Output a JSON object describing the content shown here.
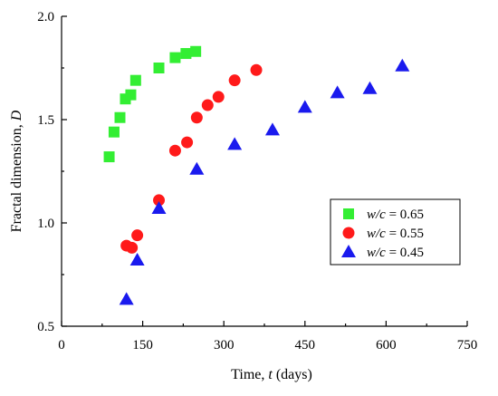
{
  "chart_data": {
    "type": "scatter",
    "xlabel": "Time, t (days)",
    "xlabel_parts": [
      "Time, ",
      "t",
      " (days)"
    ],
    "ylabel": "Fractal dimension, D",
    "ylabel_parts": [
      "Fractal dimension, ",
      "D"
    ],
    "xlim": [
      0,
      750
    ],
    "ylim": [
      0.5,
      2.0
    ],
    "x_ticks": [
      0,
      150,
      300,
      450,
      600,
      750
    ],
    "y_ticks": [
      "0.5",
      "1.0",
      "1.5",
      "2.0"
    ],
    "grid": false,
    "legend_position": "center-right",
    "series": [
      {
        "name": "w/c = 0.65",
        "legend_parts": [
          "w/c",
          " = 0.65"
        ],
        "marker": "square",
        "color": "#33ee33",
        "points": [
          [
            88,
            1.32
          ],
          [
            97,
            1.44
          ],
          [
            108,
            1.51
          ],
          [
            118,
            1.6
          ],
          [
            128,
            1.62
          ],
          [
            137,
            1.69
          ],
          [
            180,
            1.75
          ],
          [
            210,
            1.8
          ],
          [
            230,
            1.82
          ],
          [
            248,
            1.83
          ]
        ]
      },
      {
        "name": "w/c = 0.55",
        "legend_parts": [
          "w/c",
          " = 0.55"
        ],
        "marker": "circle",
        "color": "#ff1a1a",
        "points": [
          [
            120,
            0.89
          ],
          [
            130,
            0.88
          ],
          [
            140,
            0.94
          ],
          [
            180,
            1.11
          ],
          [
            210,
            1.35
          ],
          [
            232,
            1.39
          ],
          [
            250,
            1.51
          ],
          [
            270,
            1.57
          ],
          [
            290,
            1.61
          ],
          [
            320,
            1.69
          ],
          [
            360,
            1.74
          ]
        ]
      },
      {
        "name": "w/c = 0.45",
        "legend_parts": [
          "w/c",
          " = 0.45"
        ],
        "marker": "triangle",
        "color": "#1a1aee",
        "points": [
          [
            120,
            0.63
          ],
          [
            140,
            0.82
          ],
          [
            180,
            1.07
          ],
          [
            250,
            1.26
          ],
          [
            320,
            1.38
          ],
          [
            390,
            1.45
          ],
          [
            450,
            1.56
          ],
          [
            510,
            1.63
          ],
          [
            570,
            1.65
          ],
          [
            630,
            1.76
          ]
        ]
      }
    ]
  }
}
